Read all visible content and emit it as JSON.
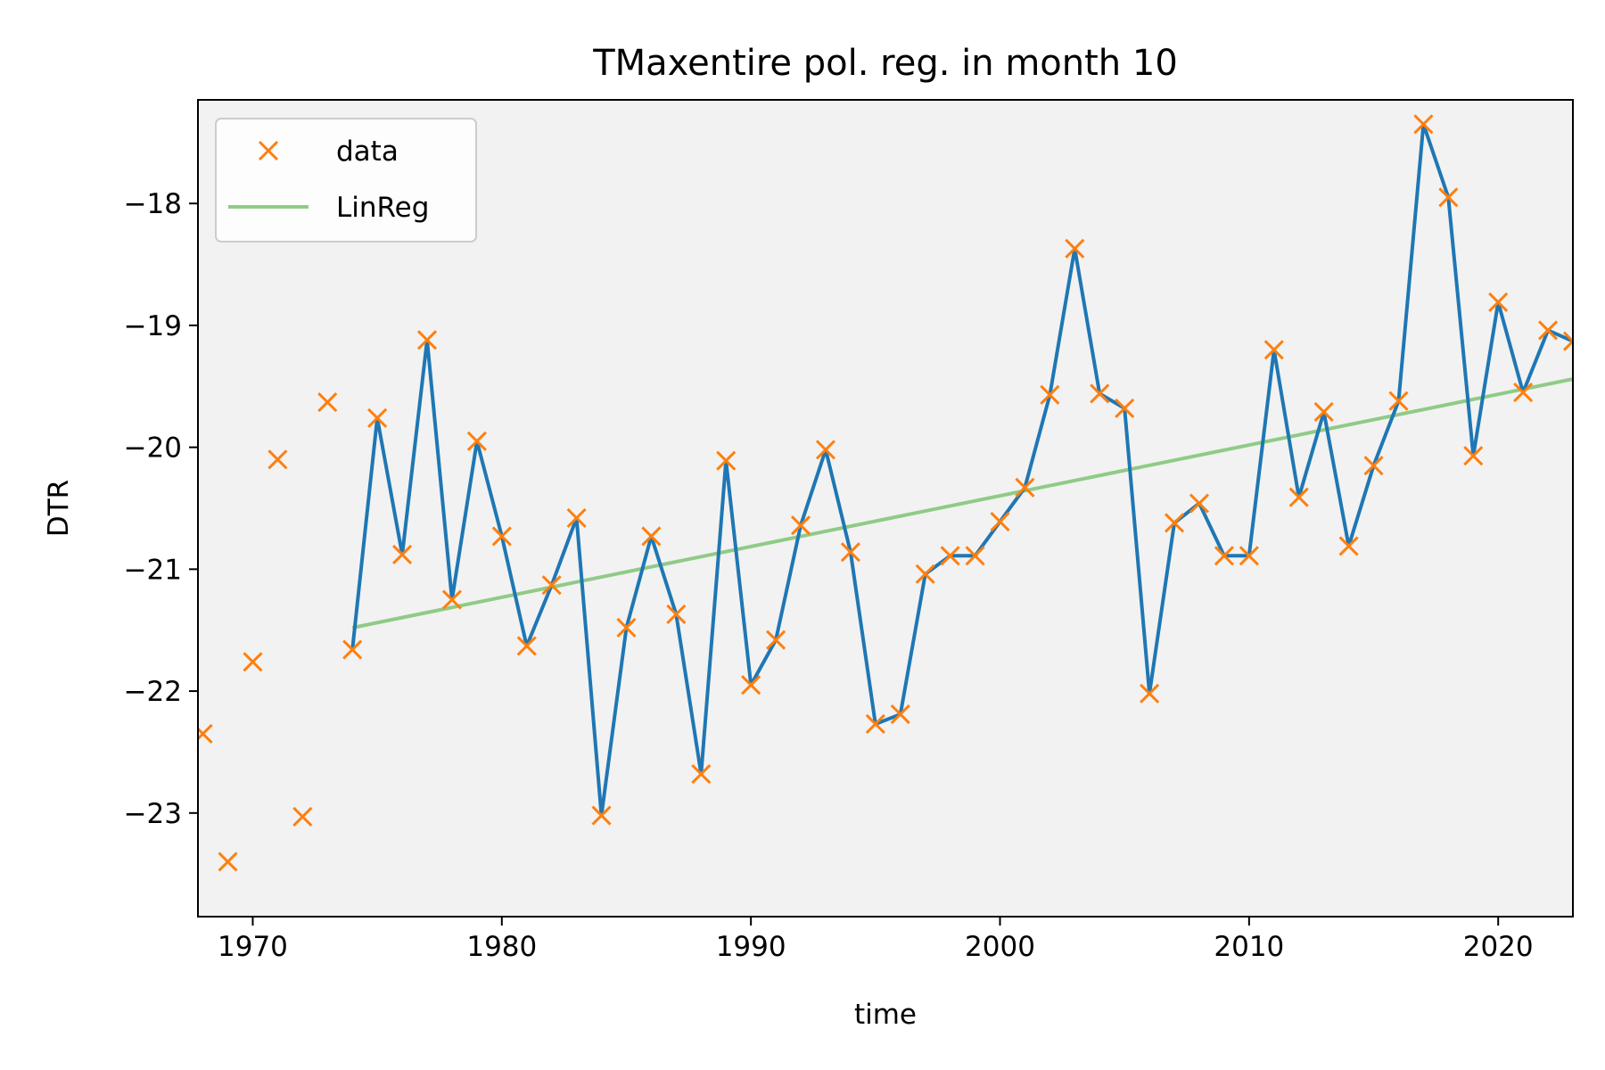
{
  "chart_data": {
    "type": "line",
    "title": "TMaxentire pol. reg. in month 10",
    "xlabel": "time",
    "ylabel": "DTR",
    "xlim": [
      1967.8,
      2023
    ],
    "ylim": [
      -23.85,
      -17.15
    ],
    "xticks": [
      1970,
      1980,
      1990,
      2000,
      2010,
      2020
    ],
    "yticks": [
      -23,
      -22,
      -21,
      -20,
      -19,
      -18
    ],
    "grid": false,
    "legend_position": "top-left",
    "colors": {
      "background": "#f2f2f2",
      "data_marker": "#ff7f0e",
      "series_line": "#1f77b4",
      "linreg": "#8fcb86"
    },
    "series": [
      {
        "name": "data",
        "style": "markers",
        "x": [
          1968,
          1969,
          1970,
          1971,
          1972,
          1973,
          1974,
          1975,
          1976,
          1977,
          1978,
          1979,
          1980,
          1981,
          1982,
          1983,
          1984,
          1985,
          1986,
          1987,
          1988,
          1989,
          1990,
          1991,
          1992,
          1993,
          1994,
          1995,
          1996,
          1997,
          1998,
          1999,
          2000,
          2001,
          2002,
          2003,
          2004,
          2005,
          2006,
          2007,
          2008,
          2009,
          2010,
          2011,
          2012,
          2013,
          2014,
          2015,
          2016,
          2017,
          2018,
          2019,
          2020,
          2021,
          2022,
          2023
        ],
        "y": [
          -22.35,
          -23.4,
          -21.76,
          -20.1,
          -23.03,
          -19.63,
          -21.66,
          -19.76,
          -20.88,
          -19.12,
          -21.25,
          -19.95,
          -20.73,
          -21.63,
          -21.13,
          -20.58,
          -23.02,
          -21.48,
          -20.73,
          -21.37,
          -22.68,
          -20.11,
          -21.95,
          -21.58,
          -20.64,
          -20.02,
          -20.86,
          -22.27,
          -22.19,
          -21.04,
          -20.89,
          -20.89,
          -20.61,
          -20.33,
          -19.57,
          -18.37,
          -19.56,
          -19.68,
          -22.02,
          -20.62,
          -20.46,
          -20.89,
          -20.89,
          -19.2,
          -20.41,
          -19.71,
          -20.81,
          -20.15,
          -19.62,
          -17.35,
          -17.95,
          -20.07,
          -18.81,
          -19.55,
          -19.04,
          -19.13
        ]
      },
      {
        "name": "",
        "style": "line",
        "x": [
          1974,
          1975,
          1976,
          1977,
          1978,
          1979,
          1980,
          1981,
          1982,
          1983,
          1984,
          1985,
          1986,
          1987,
          1988,
          1989,
          1990,
          1991,
          1992,
          1993,
          1994,
          1995,
          1996,
          1997,
          1998,
          1999,
          2000,
          2001,
          2002,
          2003,
          2004,
          2005,
          2006,
          2007,
          2008,
          2009,
          2010,
          2011,
          2012,
          2013,
          2014,
          2015,
          2016,
          2017,
          2018,
          2019,
          2020,
          2021,
          2022,
          2023
        ],
        "y": [
          -21.66,
          -19.76,
          -20.88,
          -19.12,
          -21.25,
          -19.95,
          -20.73,
          -21.63,
          -21.13,
          -20.58,
          -23.02,
          -21.48,
          -20.73,
          -21.37,
          -22.68,
          -20.11,
          -21.95,
          -21.58,
          -20.64,
          -20.02,
          -20.86,
          -22.27,
          -22.19,
          -21.04,
          -20.89,
          -20.89,
          -20.61,
          -20.33,
          -19.57,
          -18.37,
          -19.56,
          -19.68,
          -22.02,
          -20.62,
          -20.46,
          -20.89,
          -20.89,
          -19.2,
          -20.41,
          -19.71,
          -20.81,
          -20.15,
          -19.62,
          -17.35,
          -17.95,
          -20.07,
          -18.81,
          -19.55,
          -19.04,
          -19.13
        ]
      },
      {
        "name": "LinReg",
        "style": "line",
        "x": [
          1974,
          2023
        ],
        "y": [
          -21.48,
          -19.44
        ]
      }
    ]
  }
}
